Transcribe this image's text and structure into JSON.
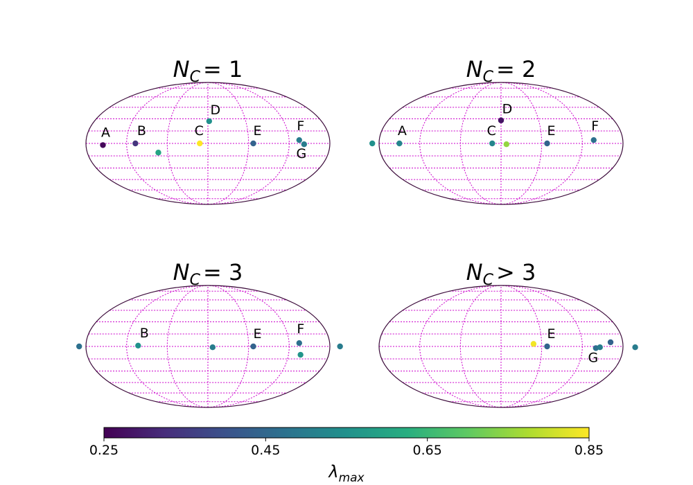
{
  "chart_data": {
    "type": "scatter",
    "projection": "mollweide",
    "grid": true,
    "panels": [
      {
        "title": "N_C = 1",
        "title_parts": {
          "main": "N",
          "sub": "C",
          "rel": "= 1"
        },
        "points": [
          {
            "lon": -155,
            "lat": -2,
            "value": 0.26,
            "label": "A"
          },
          {
            "lon": -107,
            "lat": 0,
            "value": 0.34,
            "label": "B"
          },
          {
            "lon": -74,
            "lat": -11,
            "value": 0.6,
            "label": ""
          },
          {
            "lon": -12,
            "lat": 0,
            "value": 0.85,
            "label": "C"
          },
          {
            "lon": 2,
            "lat": 27,
            "value": 0.55,
            "label": "D"
          },
          {
            "lon": 67,
            "lat": 0,
            "value": 0.44,
            "label": "E"
          },
          {
            "lon": 135,
            "lat": 4,
            "value": 0.5,
            "label": "F"
          },
          {
            "lon": 142,
            "lat": -1,
            "value": 0.5,
            "label": "G"
          }
        ]
      },
      {
        "title": "N_C = 2",
        "title_parts": {
          "main": "N",
          "sub": "C",
          "rel": "= 2"
        },
        "points": [
          {
            "lon": -190,
            "lat": 0,
            "value": 0.55,
            "label": ""
          },
          {
            "lon": -150,
            "lat": 0,
            "value": 0.52,
            "label": "A"
          },
          {
            "lon": -13,
            "lat": 0,
            "value": 0.52,
            "label": "C"
          },
          {
            "lon": 0,
            "lat": 28,
            "value": 0.28,
            "label": "D"
          },
          {
            "lon": 8,
            "lat": -1,
            "value": 0.75,
            "label": ""
          },
          {
            "lon": 68,
            "lat": 0,
            "value": 0.44,
            "label": "E"
          },
          {
            "lon": 137,
            "lat": 4,
            "value": 0.47,
            "label": "F"
          }
        ]
      },
      {
        "title": "N_C = 3",
        "title_parts": {
          "main": "N",
          "sub": "C",
          "rel": "= 3"
        },
        "points": [
          {
            "lon": -190,
            "lat": 0,
            "value": 0.47,
            "label": ""
          },
          {
            "lon": -103,
            "lat": 1,
            "value": 0.55,
            "label": "B"
          },
          {
            "lon": 7,
            "lat": -1,
            "value": 0.5,
            "label": ""
          },
          {
            "lon": 67,
            "lat": 0,
            "value": 0.44,
            "label": "E"
          },
          {
            "lon": 135,
            "lat": 4,
            "value": 0.47,
            "label": "F"
          },
          {
            "lon": 138,
            "lat": -10,
            "value": 0.56,
            "label": ""
          },
          {
            "lon": 195,
            "lat": 0,
            "value": 0.5,
            "label": ""
          }
        ]
      },
      {
        "title": "N_C > 3",
        "title_parts": {
          "main": "N",
          "sub": "C",
          "rel": "> 3"
        },
        "points": [
          {
            "lon": 48,
            "lat": 3,
            "value": 0.84,
            "label": ""
          },
          {
            "lon": 68,
            "lat": 0,
            "value": 0.44,
            "label": "E"
          },
          {
            "lon": 140,
            "lat": -2,
            "value": 0.47,
            "label": "G"
          },
          {
            "lon": 146,
            "lat": -1,
            "value": 0.5,
            "label": ""
          },
          {
            "lon": 162,
            "lat": 5,
            "value": 0.44,
            "label": ""
          },
          {
            "lon": 198,
            "lat": -1,
            "value": 0.5,
            "label": ""
          }
        ]
      }
    ],
    "colorbar": {
      "label": "λ",
      "label_sub": "max",
      "range": [
        0.25,
        0.85
      ],
      "ticks": [
        0.25,
        0.45,
        0.65,
        0.85
      ],
      "tick_labels": [
        "0.25",
        "0.45",
        "0.65",
        "0.85"
      ],
      "colormap": "viridis",
      "orientation": "horizontal"
    },
    "colors": {
      "outline": "#3b0a3a",
      "grid": "#cc00cc"
    }
  }
}
